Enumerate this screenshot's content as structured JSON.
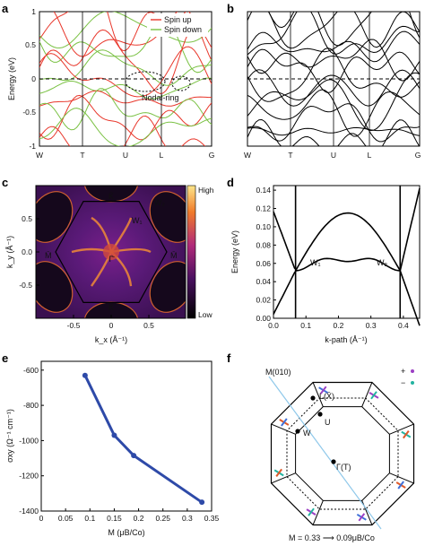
{
  "chart_data": [
    {
      "panel": "a",
      "type": "line",
      "ylabel": "Energy (eV)",
      "ylim": [
        -1,
        1
      ],
      "yticks": [
        "-1",
        "-0.5",
        "0",
        "0.5",
        "1"
      ],
      "xticks": [
        "W",
        "T",
        "U",
        "L",
        "G"
      ],
      "legend": [
        "Spin up",
        "Spin down"
      ],
      "annotation": "Nodal-ring",
      "colors": {
        "spin_up": "#e8362a",
        "spin_down": "#7ac143"
      }
    },
    {
      "panel": "b",
      "type": "line",
      "ylim": [
        -1,
        1
      ],
      "xticks": [
        "W",
        "T",
        "U",
        "L",
        "G"
      ]
    },
    {
      "panel": "c",
      "type": "heatmap",
      "xlabel": "k_x (Å⁻¹)",
      "ylabel": "k_y (Å⁻¹)",
      "xticks": [
        "-0.5",
        "0",
        "0.5"
      ],
      "yticks": [
        "-0.5",
        "0.0",
        "0.5"
      ],
      "xlim": [
        -0.85,
        0.85
      ],
      "ylim": [
        -0.75,
        0.75
      ],
      "points": [
        "K̄",
        "W₂",
        "W₁",
        "Γ̄",
        "M̄",
        "M̄",
        "K̄"
      ],
      "colorbar": [
        "High",
        "Low"
      ]
    },
    {
      "panel": "d",
      "type": "line",
      "xlabel": "k-path (Å⁻¹)",
      "ylabel": "Energy (eV)",
      "xticks": [
        "0.0",
        "0.1",
        "0.2",
        "0.3",
        "0.4"
      ],
      "yticks": [
        "0.00",
        "0.02",
        "0.04",
        "0.06",
        "0.08",
        "0.10",
        "0.12",
        "0.14"
      ],
      "xlim": [
        0,
        0.45
      ],
      "ylim": [
        0,
        0.145
      ],
      "labels": [
        "W₁",
        "W₂"
      ]
    },
    {
      "panel": "e",
      "type": "line",
      "xlabel": "M (μB/Co)",
      "ylabel": "σxy (Ω⁻¹ cm⁻¹)",
      "xlim": [
        0,
        0.35
      ],
      "ylim": [
        -1400,
        -550
      ],
      "xticks": [
        "0",
        "0.05",
        "0.1",
        "0.15",
        "0.2",
        "0.25",
        "0.3",
        "0.35"
      ],
      "yticks": [
        "-600",
        "-800",
        "-1000",
        "-1200",
        "-1400"
      ],
      "x": [
        0.09,
        0.15,
        0.19,
        0.33
      ],
      "y": [
        -630,
        -970,
        -1085,
        -1350
      ],
      "color": "#2e4aa8"
    },
    {
      "panel": "f",
      "type": "diagram",
      "labels": [
        "M(010)",
        "L(X̄)",
        "U",
        "W",
        "Γ(T)",
        "+",
        "−"
      ],
      "caption": "M = 0.33 ⟶ 0.09μB/Co"
    }
  ]
}
